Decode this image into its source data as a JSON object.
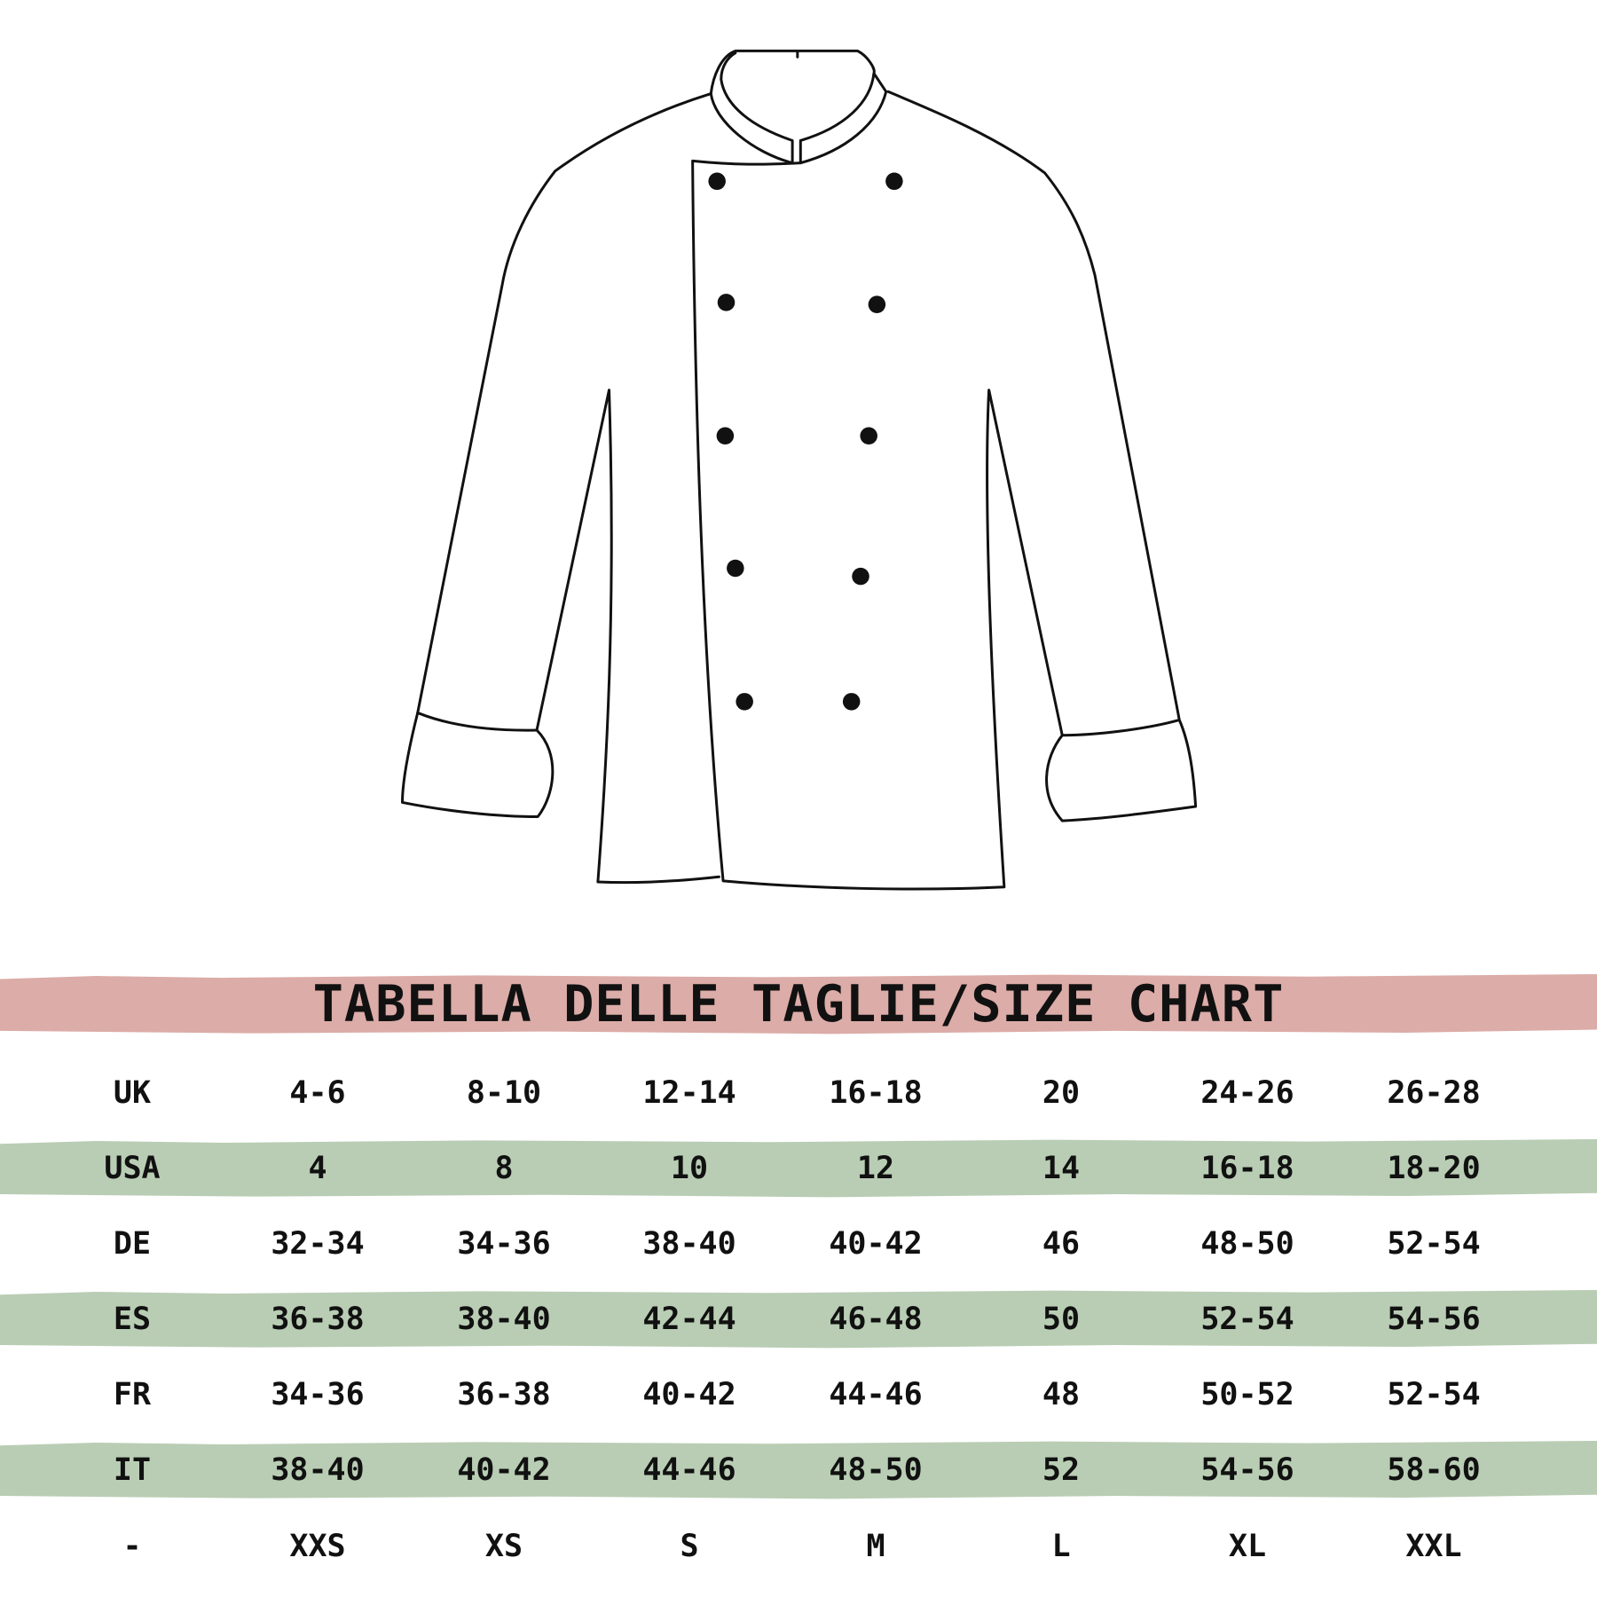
{
  "title": "TABELLA DELLE TAGLIE/SIZE CHART",
  "colors": {
    "title_band": "#dcaca8",
    "row_band": "#b9cdb4",
    "text": "#111111",
    "outline": "#111111"
  },
  "illustration": "chef-jacket-icon",
  "rows": [
    {
      "label": "UK",
      "values": [
        "4-6",
        "8-10",
        "12-14",
        "16-18",
        "20",
        "24-26",
        "26-28"
      ],
      "striped": false
    },
    {
      "label": "USA",
      "values": [
        "4",
        "8",
        "10",
        "12",
        "14",
        "16-18",
        "18-20"
      ],
      "striped": true
    },
    {
      "label": "DE",
      "values": [
        "32-34",
        "34-36",
        "38-40",
        "40-42",
        "46",
        "48-50",
        "52-54"
      ],
      "striped": false
    },
    {
      "label": "ES",
      "values": [
        "36-38",
        "38-40",
        "42-44",
        "46-48",
        "50",
        "52-54",
        "54-56"
      ],
      "striped": true
    },
    {
      "label": "FR",
      "values": [
        "34-36",
        "36-38",
        "40-42",
        "44-46",
        "48",
        "50-52",
        "52-54"
      ],
      "striped": false
    },
    {
      "label": "IT",
      "values": [
        "38-40",
        "40-42",
        "44-46",
        "48-50",
        "52",
        "54-56",
        "58-60"
      ],
      "striped": true
    },
    {
      "label": "-",
      "values": [
        "XXS",
        "XS",
        "S",
        "M",
        "L",
        "XL",
        "XXL"
      ],
      "striped": false
    }
  ]
}
